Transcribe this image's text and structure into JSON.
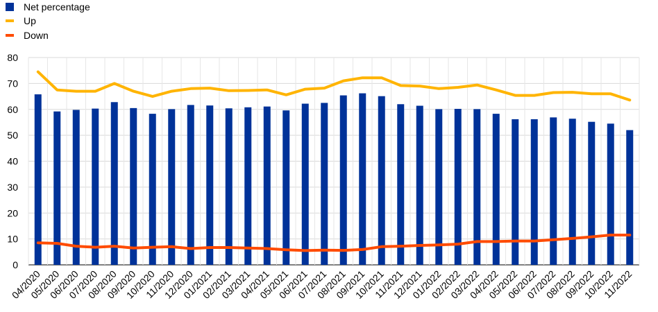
{
  "chart_data": {
    "type": "bar",
    "title": "",
    "xlabel": "",
    "ylabel": "",
    "ylim": [
      0,
      80
    ],
    "yticks": [
      "0",
      "10",
      "20",
      "30",
      "40",
      "50",
      "60",
      "70",
      "80"
    ],
    "grid": true,
    "legend_position": "top-left",
    "categories": [
      "04/2020",
      "05/2020",
      "06/2020",
      "07/2020",
      "08/2020",
      "09/2020",
      "10/2020",
      "11/2020",
      "12/2020",
      "01/2021",
      "02/2021",
      "03/2021",
      "04/2021",
      "05/2021",
      "06/2021",
      "07/2021",
      "08/2021",
      "09/2021",
      "10/2021",
      "11/2021",
      "12/2021",
      "01/2022",
      "02/2022",
      "03/2022",
      "04/2022",
      "05/2022",
      "06/2022",
      "07/2022",
      "08/2022",
      "09/2022",
      "10/2022",
      "11/2022"
    ],
    "series": [
      {
        "name": "Net percentage",
        "kind": "bar",
        "color": "#003299",
        "values": [
          65.8,
          59.2,
          59.8,
          60.3,
          62.8,
          60.5,
          58.3,
          60.1,
          61.7,
          61.5,
          60.4,
          60.8,
          61.1,
          59.6,
          62.2,
          62.5,
          65.4,
          66.2,
          65.1,
          62.0,
          61.4,
          60.1,
          60.2,
          60.1,
          58.3,
          56.2,
          56.2,
          56.9,
          56.4,
          55.2,
          54.5,
          52.0
        ]
      },
      {
        "name": "Up",
        "kind": "line",
        "color": "#FFB400",
        "values": [
          74.5,
          67.5,
          67.0,
          67.0,
          70.0,
          67.0,
          65.0,
          67.0,
          68.0,
          68.2,
          67.2,
          67.3,
          67.5,
          65.6,
          67.8,
          68.2,
          71.0,
          72.2,
          72.2,
          69.2,
          69.0,
          68.0,
          68.5,
          69.4,
          67.5,
          65.4,
          65.4,
          66.5,
          66.6,
          66.0,
          66.0,
          63.6
        ]
      },
      {
        "name": "Down",
        "kind": "line",
        "color": "#FF4B00",
        "values": [
          8.5,
          8.3,
          7.2,
          6.8,
          7.2,
          6.5,
          6.8,
          7.0,
          6.3,
          6.7,
          6.7,
          6.5,
          6.3,
          5.8,
          5.5,
          5.7,
          5.6,
          5.9,
          7.0,
          7.2,
          7.5,
          7.7,
          8.0,
          9.0,
          9.0,
          9.2,
          9.2,
          9.7,
          10.2,
          10.8,
          11.5,
          11.5
        ]
      }
    ]
  }
}
